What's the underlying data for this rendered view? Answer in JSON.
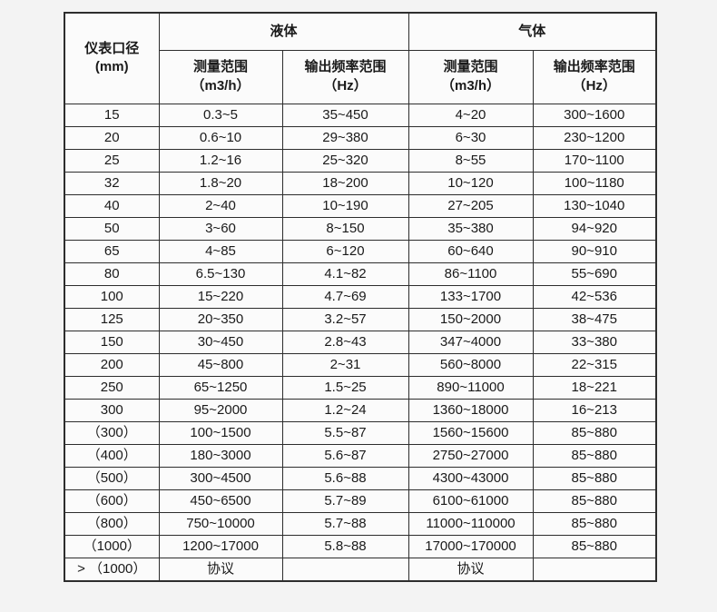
{
  "colors": {
    "page_background": "#f3f3f3",
    "cell_background": "#fbfbfb",
    "border": "#2d2d2d",
    "text": "#1a1a1a"
  },
  "chart_data": {
    "type": "table",
    "header": {
      "diameter": {
        "line1": "仪表口径",
        "line2": "(mm)"
      },
      "groups": [
        {
          "label": "液体"
        },
        {
          "label": "气体"
        }
      ],
      "subcols": {
        "measure": {
          "line1": "测量范围",
          "line2": "（m3/h）"
        },
        "freq": {
          "line1": "输出频率范围",
          "line2": "（Hz）"
        }
      }
    },
    "columns": [
      "仪表口径 (mm)",
      "液体 测量范围（m3/h）",
      "液体 输出频率范围（Hz）",
      "气体 测量范围（m3/h）",
      "气体 输出频率范围（Hz）"
    ],
    "rows": [
      {
        "diameter": "15",
        "liquid_range": "0.3~5",
        "liquid_freq": "35~450",
        "gas_range": "4~20",
        "gas_freq": "300~1600"
      },
      {
        "diameter": "20",
        "liquid_range": "0.6~10",
        "liquid_freq": "29~380",
        "gas_range": "6~30",
        "gas_freq": "230~1200"
      },
      {
        "diameter": "25",
        "liquid_range": "1.2~16",
        "liquid_freq": "25~320",
        "gas_range": "8~55",
        "gas_freq": "170~1100"
      },
      {
        "diameter": "32",
        "liquid_range": "1.8~20",
        "liquid_freq": "18~200",
        "gas_range": "10~120",
        "gas_freq": "100~1180"
      },
      {
        "diameter": "40",
        "liquid_range": "2~40",
        "liquid_freq": "10~190",
        "gas_range": "27~205",
        "gas_freq": "130~1040"
      },
      {
        "diameter": "50",
        "liquid_range": "3~60",
        "liquid_freq": "8~150",
        "gas_range": "35~380",
        "gas_freq": "94~920"
      },
      {
        "diameter": "65",
        "liquid_range": "4~85",
        "liquid_freq": "6~120",
        "gas_range": "60~640",
        "gas_freq": "90~910"
      },
      {
        "diameter": "80",
        "liquid_range": "6.5~130",
        "liquid_freq": "4.1~82",
        "gas_range": "86~1100",
        "gas_freq": "55~690"
      },
      {
        "diameter": "100",
        "liquid_range": "15~220",
        "liquid_freq": "4.7~69",
        "gas_range": "133~1700",
        "gas_freq": "42~536"
      },
      {
        "diameter": "125",
        "liquid_range": "20~350",
        "liquid_freq": "3.2~57",
        "gas_range": "150~2000",
        "gas_freq": "38~475"
      },
      {
        "diameter": "150",
        "liquid_range": "30~450",
        "liquid_freq": "2.8~43",
        "gas_range": "347~4000",
        "gas_freq": "33~380"
      },
      {
        "diameter": "200",
        "liquid_range": "45~800",
        "liquid_freq": "2~31",
        "gas_range": "560~8000",
        "gas_freq": "22~315"
      },
      {
        "diameter": "250",
        "liquid_range": "65~1250",
        "liquid_freq": "1.5~25",
        "gas_range": "890~11000",
        "gas_freq": "18~221"
      },
      {
        "diameter": "300",
        "liquid_range": "95~2000",
        "liquid_freq": "1.2~24",
        "gas_range": "1360~18000",
        "gas_freq": "16~213"
      },
      {
        "diameter": "（300）",
        "liquid_range": "100~1500",
        "liquid_freq": "5.5~87",
        "gas_range": "1560~15600",
        "gas_freq": "85~880"
      },
      {
        "diameter": "（400）",
        "liquid_range": "180~3000",
        "liquid_freq": "5.6~87",
        "gas_range": "2750~27000",
        "gas_freq": "85~880"
      },
      {
        "diameter": "（500）",
        "liquid_range": "300~4500",
        "liquid_freq": "5.6~88",
        "gas_range": "4300~43000",
        "gas_freq": "85~880"
      },
      {
        "diameter": "（600）",
        "liquid_range": "450~6500",
        "liquid_freq": "5.7~89",
        "gas_range": "6100~61000",
        "gas_freq": "85~880"
      },
      {
        "diameter": "（800）",
        "liquid_range": "750~10000",
        "liquid_freq": "5.7~88",
        "gas_range": "11000~110000",
        "gas_freq": "85~880"
      },
      {
        "diameter": "（1000）",
        "liquid_range": "1200~17000",
        "liquid_freq": "5.8~88",
        "gas_range": "17000~170000",
        "gas_freq": "85~880"
      },
      {
        "diameter": "> （1000）",
        "liquid_range": "协议",
        "liquid_freq": "",
        "gas_range": "协议",
        "gas_freq": ""
      }
    ]
  }
}
